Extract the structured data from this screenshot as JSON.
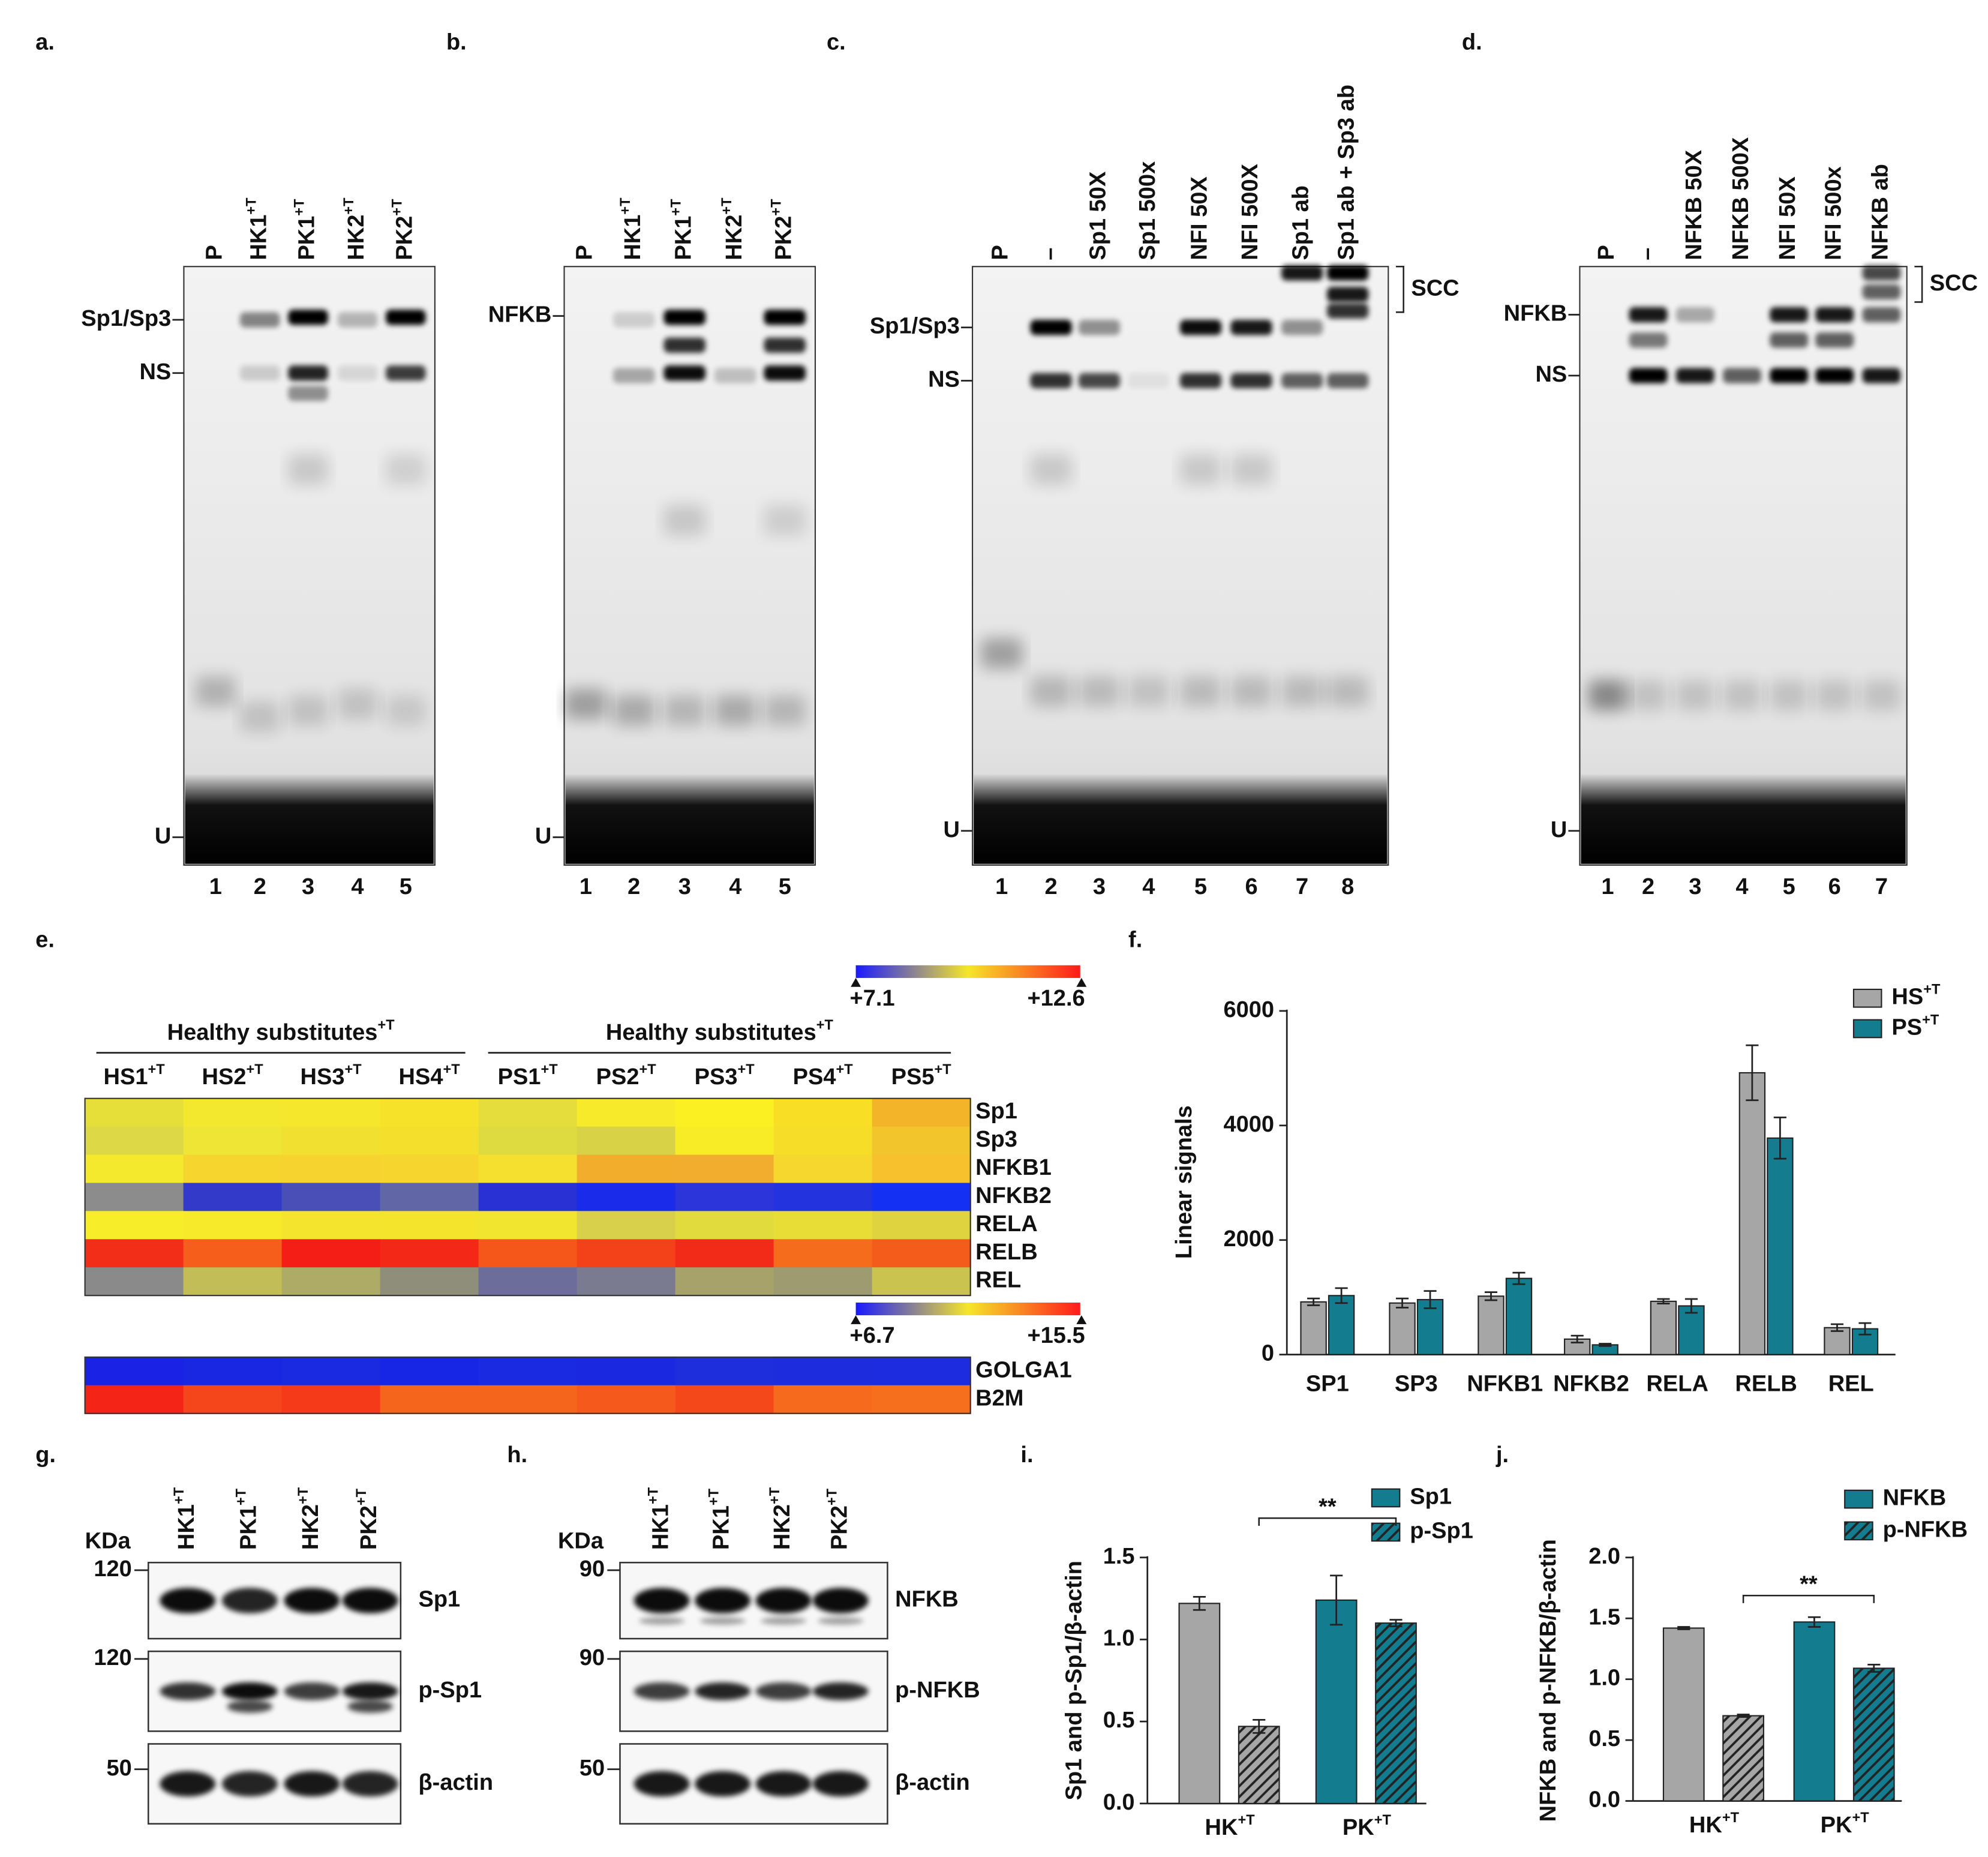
{
  "panels": {
    "a": {
      "letter": "a.",
      "lanes": [
        {
          "text": "P"
        },
        {
          "text": "HK1",
          "sup": "+T"
        },
        {
          "text": "PK1",
          "sup": "+T"
        },
        {
          "text": "HK2",
          "sup": "+T"
        },
        {
          "text": "PK2",
          "sup": "+T"
        }
      ],
      "markers": [
        "Sp1/Sp3",
        "NS",
        "U"
      ],
      "numbers": [
        1,
        2,
        3,
        4,
        5
      ]
    },
    "b": {
      "letter": "b.",
      "lanes": [
        {
          "text": "P"
        },
        {
          "text": "HK1",
          "sup": "+T"
        },
        {
          "text": "PK1",
          "sup": "+T"
        },
        {
          "text": "HK2",
          "sup": "+T"
        },
        {
          "text": "PK2",
          "sup": "+T"
        }
      ],
      "markers": [
        "NFKB",
        "U"
      ],
      "numbers": [
        1,
        2,
        3,
        4,
        5
      ]
    },
    "c": {
      "letter": "c.",
      "lanes": [
        {
          "text": "P"
        },
        {
          "text": "–"
        },
        {
          "text": "Sp1 50X"
        },
        {
          "text": "Sp1 500x"
        },
        {
          "text": "NFI 50X"
        },
        {
          "text": "NFI 500X"
        },
        {
          "text": "Sp1 ab"
        },
        {
          "text": "Sp1 ab + Sp3 ab"
        }
      ],
      "markers": [
        "Sp1/Sp3",
        "NS",
        "U"
      ],
      "bracket": "SCC",
      "numbers": [
        1,
        2,
        3,
        4,
        5,
        6,
        7,
        8
      ]
    },
    "d": {
      "letter": "d.",
      "lanes": [
        {
          "text": "P"
        },
        {
          "text": "–"
        },
        {
          "text": "NFKB 50X"
        },
        {
          "text": "NFKB 500X"
        },
        {
          "text": "NFI 50X"
        },
        {
          "text": "NFI 500x"
        },
        {
          "text": "NFKB ab"
        }
      ],
      "markers": [
        "NFKB",
        "NS",
        "U"
      ],
      "bracket": "SCC",
      "numbers": [
        1,
        2,
        3,
        4,
        5,
        6,
        7
      ]
    },
    "e": {
      "letter": "e.",
      "groups": [
        {
          "text": "Healthy substitutes",
          "sup": "+T"
        },
        {
          "text": "Healthy substitutes",
          "sup": "+T"
        }
      ],
      "columns": [
        {
          "text": "HS1",
          "sup": "+T"
        },
        {
          "text": "HS2",
          "sup": "+T"
        },
        {
          "text": "HS3",
          "sup": "+T"
        },
        {
          "text": "HS4",
          "sup": "+T"
        },
        {
          "text": "PS1",
          "sup": "+T"
        },
        {
          "text": "PS2",
          "sup": "+T"
        },
        {
          "text": "PS3",
          "sup": "+T"
        },
        {
          "text": "PS4",
          "sup": "+T"
        },
        {
          "text": "PS5",
          "sup": "+T"
        }
      ],
      "colorbar": [
        "#1a1aff",
        "#f5e62a",
        "#ff1a1a"
      ],
      "heatmaps": [
        {
          "scale": [
            "+7.1",
            "+12.6"
          ],
          "rows": [
            {
              "name": "Sp1",
              "colors": [
                "#e6df3a",
                "#f3e82e",
                "#f5e72c",
                "#f7e22a",
                "#e5dd3c",
                "#f6ea2b",
                "#fbf022",
                "#f8df25",
                "#f3b42a"
              ]
            },
            {
              "name": "Sp3",
              "colors": [
                "#ddd845",
                "#efe534",
                "#f2e030",
                "#f4df2d",
                "#dedb40",
                "#d8d346",
                "#f8ec27",
                "#f6dd28",
                "#f3c52c"
              ]
            },
            {
              "name": "NFKB1",
              "colors": [
                "#f5e92d",
                "#f5d52e",
                "#f6d32f",
                "#f6d52e",
                "#f5df2f",
                "#f2ad2c",
                "#f2ad2e",
                "#f5d72d",
                "#f6c12c"
              ]
            },
            {
              "name": "NFKB2",
              "colors": [
                "#8c8c8c",
                "#3339c9",
                "#4a4fb8",
                "#6166a6",
                "#2a31d4",
                "#1a2bea",
                "#2b35da",
                "#2333dd",
                "#1430f2"
              ]
            },
            {
              "name": "RELA",
              "colors": [
                "#f7ee29",
                "#f6ea2b",
                "#f4e42d",
                "#f4e52c",
                "#f1e530",
                "#d8d04a",
                "#e2db3d",
                "#e8dd36",
                "#dfd440"
              ]
            },
            {
              "name": "RELB",
              "colors": [
                "#f22d18",
                "#f55e1b",
                "#f41e16",
                "#f32817",
                "#f5571b",
                "#f3421a",
                "#f22a18",
                "#f66c1d",
                "#f45c1b"
              ]
            },
            {
              "name": "REL",
              "colors": [
                "#8a8a8a",
                "#c2bd57",
                "#aeab66",
                "#8f8e7a",
                "#6d6d9c",
                "#7a7a90",
                "#a6a26a",
                "#9e9b70",
                "#cbc350"
              ]
            }
          ]
        },
        {
          "scale": [
            "+6.7",
            "+15.5"
          ],
          "rows": [
            {
              "name": "GOLGA1",
              "colors": [
                "#1a22e6",
                "#1a27e2",
                "#1a2ae0",
                "#1626e4",
                "#1a2ae0",
                "#1a29e0",
                "#1e2edc",
                "#1d2ddd",
                "#1c2cde"
              ]
            },
            {
              "name": "B2M",
              "colors": [
                "#f42417",
                "#f5451a",
                "#f53a19",
                "#f5661c",
                "#f5661c",
                "#f55a1c",
                "#f5481a",
                "#f66a1d",
                "#f66f1d"
              ]
            }
          ]
        }
      ]
    },
    "g": {
      "letter": "g.",
      "unit": "KDa",
      "lanes": [
        {
          "text": "HK1",
          "sup": "+T"
        },
        {
          "text": "PK1",
          "sup": "+T"
        },
        {
          "text": "HK2",
          "sup": "+T"
        },
        {
          "text": "PK2",
          "sup": "+T"
        }
      ],
      "rows": [
        {
          "marker": 120,
          "name": "Sp1"
        },
        {
          "marker": 120,
          "name": "p-Sp1"
        },
        {
          "marker": 50,
          "name": "β-actin"
        }
      ]
    },
    "h": {
      "letter": "h.",
      "unit": "KDa",
      "lanes": [
        {
          "text": "HK1",
          "sup": "+T"
        },
        {
          "text": "PK1",
          "sup": "+T"
        },
        {
          "text": "HK2",
          "sup": "+T"
        },
        {
          "text": "PK2",
          "sup": "+T"
        }
      ],
      "rows": [
        {
          "marker": 90,
          "name": "NFKB"
        },
        {
          "marker": 90,
          "name": "p-NFKB"
        },
        {
          "marker": 50,
          "name": "β-actin"
        }
      ]
    }
  },
  "chart_data": [
    {
      "type": "bar",
      "label": "f.",
      "y_label": "Linear signals",
      "categories": [
        "SP1",
        "SP3",
        "NFKB1",
        "NFKB2",
        "RELA",
        "RELB",
        "REL"
      ],
      "series": [
        {
          "name": "HS",
          "sup": "+T",
          "color": "#a6a6a6",
          "values": [
            920,
            900,
            1020,
            270,
            930,
            4920,
            470
          ],
          "errors": [
            60,
            80,
            70,
            60,
            40,
            480,
            60
          ]
        },
        {
          "name": "PS",
          "sup": "+T",
          "color": "#137c8e",
          "values": [
            1030,
            960,
            1330,
            170,
            850,
            3780,
            450
          ],
          "errors": [
            130,
            150,
            100,
            20,
            120,
            360,
            100
          ]
        }
      ],
      "ylim": [
        0,
        6000
      ],
      "yticks": [
        0,
        2000,
        4000,
        6000
      ]
    },
    {
      "type": "bar",
      "label": "i.",
      "y_label": "Sp1 and p-Sp1/β-actin",
      "categories": [
        {
          "text": "HK",
          "sup": "+T"
        },
        {
          "text": "PK",
          "sup": "+T"
        }
      ],
      "category_colors": [
        "#a6a6a6",
        "#137c8e"
      ],
      "series": [
        {
          "name": "Sp1",
          "color": "#137c8e",
          "pattern": "solid",
          "values": [
            1.22,
            1.24
          ],
          "errors": [
            0.04,
            0.15
          ]
        },
        {
          "name": "p-Sp1",
          "color": "#137c8e",
          "pattern": "hatch",
          "values": [
            0.47,
            1.1
          ],
          "errors": [
            0.04,
            0.02
          ]
        }
      ],
      "significance": "**",
      "ylim": [
        0,
        1.5
      ],
      "yticks": [
        {
          "value": 0,
          "label": "0.0"
        },
        0.5,
        {
          "value": 1,
          "label": "1.0"
        },
        1.5
      ]
    },
    {
      "type": "bar",
      "label": "j.",
      "y_label": "NFKB and p-NFKB/β-actin",
      "categories": [
        {
          "text": "HK",
          "sup": "+T"
        },
        {
          "text": "PK",
          "sup": "+T"
        }
      ],
      "category_colors": [
        "#a6a6a6",
        "#137c8e"
      ],
      "series": [
        {
          "name": "NFKB",
          "color": "#137c8e",
          "pattern": "solid",
          "values": [
            1.42,
            1.47
          ],
          "errors": [
            0.01,
            0.04
          ]
        },
        {
          "name": "p-NFKB",
          "color": "#137c8e",
          "pattern": "hatch",
          "values": [
            0.7,
            1.09
          ],
          "errors": [
            0.01,
            0.03
          ]
        }
      ],
      "significance": "**",
      "ylim": [
        0,
        2
      ],
      "yticks": [
        {
          "value": 0,
          "label": "0.0"
        },
        0.5,
        {
          "value": 1,
          "label": "1.0"
        },
        1.5,
        {
          "value": 2,
          "label": "2.0"
        }
      ]
    }
  ]
}
